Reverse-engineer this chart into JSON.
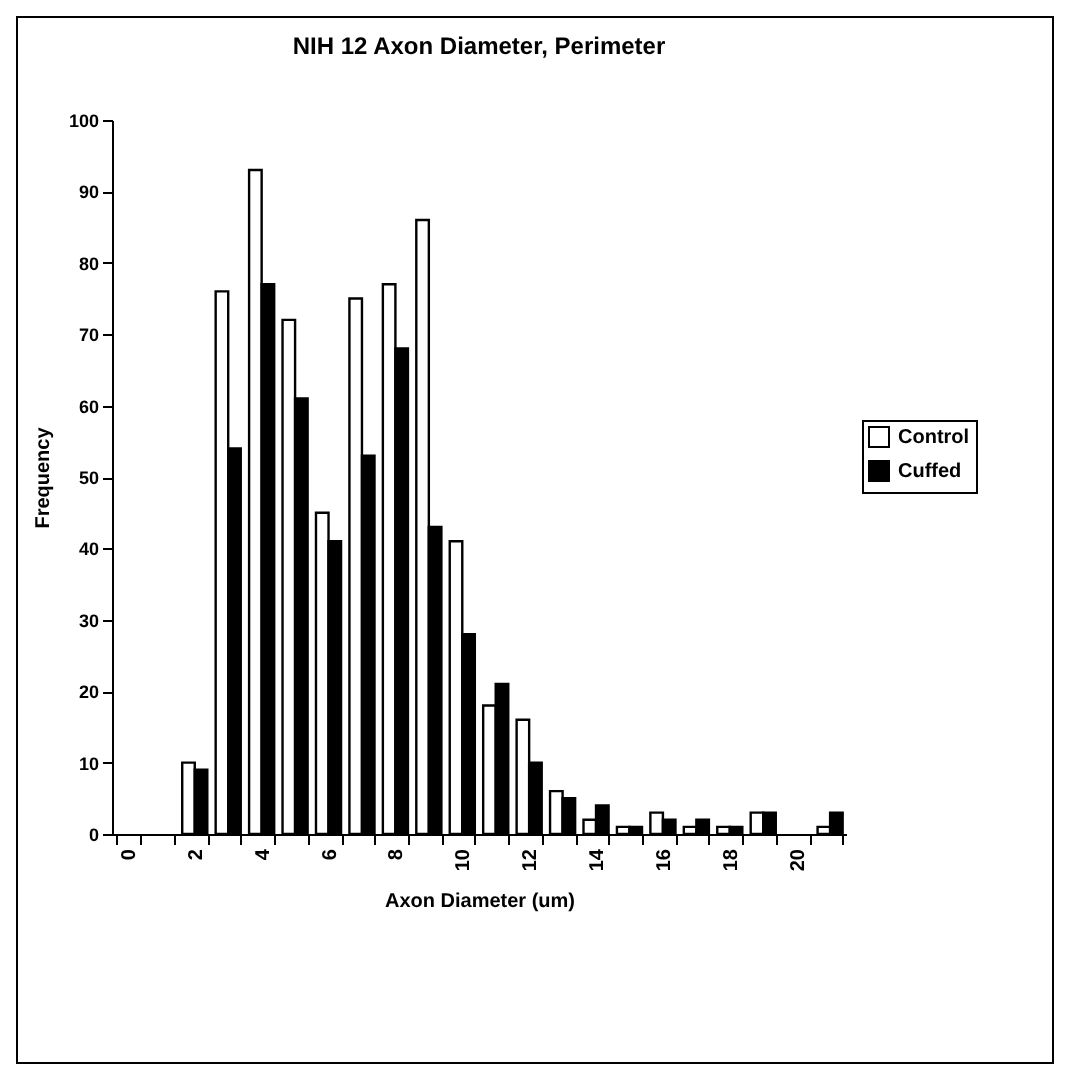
{
  "chart_data": {
    "type": "bar",
    "title": "NIH 12 Axon Diameter, Perimeter",
    "xlabel": "Axon Diameter (um)",
    "ylabel": "Frequency",
    "categories": [
      "0",
      null,
      "2",
      null,
      "4",
      null,
      "6",
      null,
      "8",
      null,
      "10",
      null,
      "12",
      null,
      "14",
      null,
      "16",
      null,
      "18",
      null,
      "20",
      null
    ],
    "series": [
      {
        "name": "Control",
        "color": "#ffffff",
        "values": [
          null,
          null,
          10,
          76,
          93,
          72,
          45,
          75,
          77,
          86,
          41,
          18,
          16,
          6,
          2,
          1,
          3,
          1,
          1,
          3,
          null,
          1
        ]
      },
      {
        "name": "Cuffed",
        "color": "#000000",
        "values": [
          null,
          null,
          9,
          54,
          77,
          61,
          41,
          53,
          68,
          43,
          28,
          21,
          10,
          5,
          4,
          1,
          2,
          2,
          1,
          3,
          null,
          3
        ]
      }
    ],
    "ylim": [
      0,
      100
    ],
    "yticks": [
      0,
      10,
      20,
      30,
      40,
      50,
      60,
      70,
      80,
      90,
      100
    ],
    "grid": false,
    "legend": "right"
  }
}
